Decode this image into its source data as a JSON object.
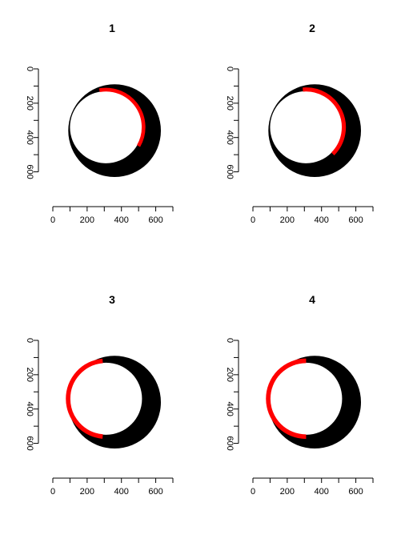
{
  "chart_data": [
    {
      "type": "scatter",
      "title": "1",
      "xlim": [
        0,
        700
      ],
      "ylim": [
        0,
        700
      ],
      "xticks": [
        "0",
        "200",
        "400",
        "600"
      ],
      "yticks": [
        "0",
        "200",
        "400",
        "600"
      ],
      "y_axis_reversed": true,
      "xlabel": "",
      "ylabel": "",
      "grid": false,
      "series": [
        {
          "color": "#000000",
          "shape": "ring",
          "outer_center": [
            360,
            360
          ],
          "outer_radius": 270,
          "inner_center": [
            310,
            340
          ],
          "inner_radius": 210
        },
        {
          "color": "#ff0000",
          "shape": "arc",
          "center": [
            310,
            340
          ],
          "radius": 210,
          "thickness": 18,
          "from_deg": -100,
          "to_deg": 30
        }
      ]
    },
    {
      "type": "scatter",
      "title": "2",
      "xlim": [
        0,
        700
      ],
      "ylim": [
        0,
        700
      ],
      "xticks": [
        "0",
        "200",
        "400",
        "600"
      ],
      "yticks": [
        "0",
        "200",
        "400",
        "600"
      ],
      "y_axis_reversed": true,
      "xlabel": "",
      "ylabel": "",
      "grid": false,
      "series": [
        {
          "color": "#000000",
          "shape": "ring",
          "outer_center": [
            360,
            360
          ],
          "outer_radius": 270,
          "inner_center": [
            310,
            340
          ],
          "inner_radius": 210
        },
        {
          "color": "#ff0000",
          "shape": "arc",
          "center": [
            310,
            340
          ],
          "radius": 210,
          "thickness": 20,
          "from_deg": -95,
          "to_deg": 45
        }
      ]
    },
    {
      "type": "scatter",
      "title": "3",
      "xlim": [
        0,
        700
      ],
      "ylim": [
        0,
        700
      ],
      "xticks": [
        "0",
        "200",
        "400",
        "600"
      ],
      "yticks": [
        "0",
        "200",
        "400",
        "600"
      ],
      "y_axis_reversed": true,
      "xlabel": "",
      "ylabel": "",
      "grid": false,
      "series": [
        {
          "color": "#000000",
          "shape": "ring",
          "outer_center": [
            360,
            360
          ],
          "outer_radius": 270,
          "inner_center": [
            310,
            340
          ],
          "inner_radius": 210
        },
        {
          "color": "#ff0000",
          "shape": "arc",
          "center": [
            310,
            340
          ],
          "radius": 210,
          "thickness": 22,
          "from_deg": 95,
          "to_deg": 265
        }
      ]
    },
    {
      "type": "scatter",
      "title": "4",
      "xlim": [
        0,
        700
      ],
      "ylim": [
        0,
        700
      ],
      "xticks": [
        "0",
        "200",
        "400",
        "600"
      ],
      "yticks": [
        "0",
        "200",
        "400",
        "600"
      ],
      "y_axis_reversed": true,
      "xlabel": "",
      "ylabel": "",
      "grid": false,
      "series": [
        {
          "color": "#000000",
          "shape": "ring",
          "outer_center": [
            360,
            360
          ],
          "outer_radius": 270,
          "inner_center": [
            310,
            340
          ],
          "inner_radius": 210
        },
        {
          "color": "#ff0000",
          "shape": "arc",
          "center": [
            310,
            340
          ],
          "radius": 210,
          "thickness": 22,
          "from_deg": 90,
          "to_deg": 270
        }
      ]
    }
  ]
}
